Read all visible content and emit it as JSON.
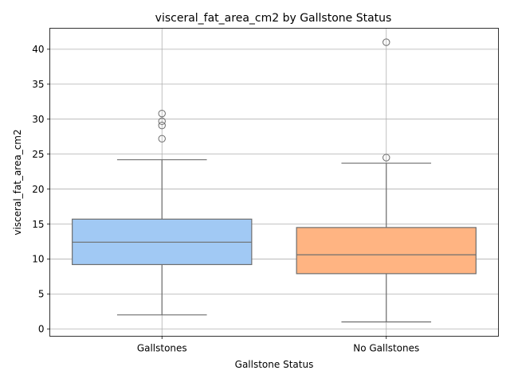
{
  "chart_data": {
    "type": "box",
    "title": "visceral_fat_area_cm2 by Gallstone Status",
    "xlabel": "Gallstone Status",
    "ylabel": "visceral_fat_area_cm2",
    "categories": [
      "Gallstones",
      "No Gallstones"
    ],
    "ylim": [
      -1.05,
      43.0
    ],
    "yticks": [
      0,
      5,
      10,
      15,
      20,
      25,
      30,
      35,
      40
    ],
    "grid": true,
    "boxes": [
      {
        "category": "Gallstones",
        "color": "#a1c9f4",
        "whisker_low": 2.0,
        "q1": 9.2,
        "median": 12.4,
        "q3": 15.7,
        "whisker_high": 24.2,
        "outliers": [
          27.2,
          29.1,
          29.7,
          30.8
        ]
      },
      {
        "category": "No Gallstones",
        "color": "#ffb482",
        "whisker_low": 1.0,
        "q1": 7.9,
        "median": 10.6,
        "q3": 14.5,
        "whisker_high": 23.7,
        "outliers": [
          24.5,
          41.0
        ]
      }
    ]
  }
}
